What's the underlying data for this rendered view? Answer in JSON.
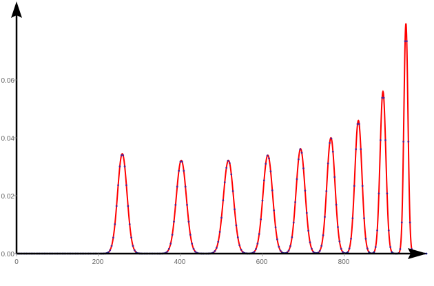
{
  "chart_data": {
    "type": "line",
    "title": "",
    "xlabel": "",
    "ylabel": "",
    "xlim": [
      0,
      1000
    ],
    "ylim": [
      0,
      0.08
    ],
    "x_ticks": [
      0,
      200,
      400,
      600,
      800
    ],
    "y_ticks": [
      0.0,
      0.02,
      0.04,
      0.06
    ],
    "x_tick_labels": [
      "0",
      "200",
      "400",
      "600",
      "800"
    ],
    "y_tick_labels": [
      "0.00",
      "0.02",
      "0.04",
      "0.06"
    ],
    "grid": false,
    "legend": "none",
    "colors": {
      "line": "#ff0000",
      "points": "#5a1f8c",
      "axis": "#000000",
      "baseline": "#1a1a8c"
    },
    "series": [
      {
        "style": "line",
        "peaks": [
          {
            "center": 258,
            "height": 0.0345,
            "sigma": 11.5
          },
          {
            "center": 402,
            "height": 0.0322,
            "sigma": 12.3
          },
          {
            "center": 517,
            "height": 0.0322,
            "sigma": 12.3
          },
          {
            "center": 613,
            "height": 0.034,
            "sigma": 11.7
          },
          {
            "center": 693,
            "height": 0.0362,
            "sigma": 10.9
          },
          {
            "center": 767,
            "height": 0.04,
            "sigma": 9.9
          },
          {
            "center": 834,
            "height": 0.046,
            "sigma": 8.6
          },
          {
            "center": 894,
            "height": 0.056,
            "sigma": 7.1
          },
          {
            "center": 950,
            "height": 0.0795,
            "sigma": 5.0
          }
        ]
      },
      {
        "style": "points",
        "x_step": 4,
        "peaks": [
          {
            "center": 258,
            "height": 0.0345,
            "sigma": 11.5
          },
          {
            "center": 402,
            "height": 0.0322,
            "sigma": 12.3
          },
          {
            "center": 517,
            "height": 0.0322,
            "sigma": 12.3
          },
          {
            "center": 613,
            "height": 0.034,
            "sigma": 11.7
          },
          {
            "center": 693,
            "height": 0.0362,
            "sigma": 10.9
          },
          {
            "center": 767,
            "height": 0.04,
            "sigma": 9.9
          },
          {
            "center": 834,
            "height": 0.046,
            "sigma": 8.6
          },
          {
            "center": 894,
            "height": 0.056,
            "sigma": 7.1
          },
          {
            "center": 950,
            "height": 0.0795,
            "sigma": 5.0
          }
        ]
      }
    ]
  }
}
